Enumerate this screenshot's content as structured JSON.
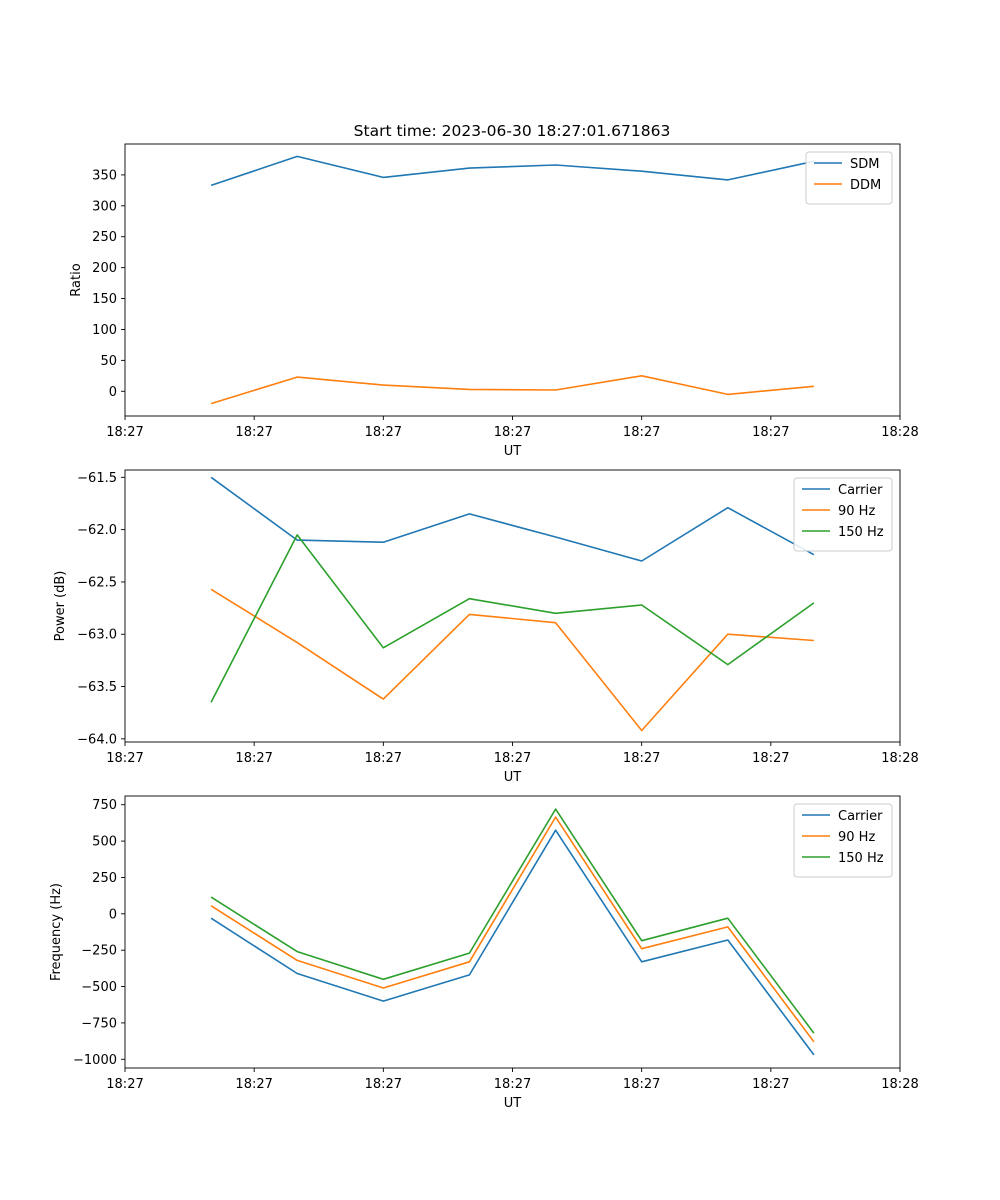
{
  "figure": {
    "title": "Start time: 2023-06-30 18:27:01.671863"
  },
  "chart_data": [
    {
      "type": "line",
      "ylabel": "Ratio",
      "xlabel": "UT",
      "xlim": [
        0,
        9
      ],
      "ylim": [
        -40,
        400
      ],
      "x": [
        1,
        2,
        3,
        4,
        5,
        6,
        7,
        8
      ],
      "x_tick_positions": [
        0.0,
        1.5,
        3.0,
        4.5,
        6.0,
        7.5,
        9.0
      ],
      "x_tick_labels": [
        "18:27",
        "18:27",
        "18:27",
        "18:27",
        "18:27",
        "18:27",
        "18:28"
      ],
      "y_ticks": [
        0,
        50,
        100,
        150,
        200,
        250,
        300,
        350
      ],
      "y_tick_labels": [
        "0",
        "50",
        "100",
        "150",
        "200",
        "250",
        "300",
        "350"
      ],
      "legend_position": "top-right",
      "series": [
        {
          "name": "SDM",
          "color": "#1f77b4",
          "values": [
            333,
            380,
            346,
            361,
            366,
            356,
            342,
            372
          ]
        },
        {
          "name": "DDM",
          "color": "#ff7f0e",
          "values": [
            -20,
            23,
            10,
            3,
            2,
            25,
            -5,
            8
          ]
        }
      ]
    },
    {
      "type": "line",
      "ylabel": "Power (dB)",
      "xlabel": "UT",
      "xlim": [
        0,
        9
      ],
      "ylim": [
        -64.03,
        -61.43
      ],
      "x": [
        1,
        2,
        3,
        4,
        5,
        6,
        7,
        8
      ],
      "x_tick_positions": [
        0.0,
        1.5,
        3.0,
        4.5,
        6.0,
        7.5,
        9.0
      ],
      "x_tick_labels": [
        "18:27",
        "18:27",
        "18:27",
        "18:27",
        "18:27",
        "18:27",
        "18:28"
      ],
      "y_ticks": [
        -64.0,
        -63.5,
        -63.0,
        -62.5,
        -62.0,
        -61.5
      ],
      "y_tick_labels": [
        "−64.0",
        "−63.5",
        "−63.0",
        "−62.5",
        "−62.0",
        "−61.5"
      ],
      "legend_position": "top-right",
      "series": [
        {
          "name": "Carrier",
          "color": "#1f77b4",
          "values": [
            -61.5,
            -62.1,
            -62.12,
            -61.85,
            -62.07,
            -62.3,
            -61.79,
            -62.24
          ]
        },
        {
          "name": "90 Hz",
          "color": "#ff7f0e",
          "values": [
            -62.57,
            -63.08,
            -63.62,
            -62.81,
            -62.89,
            -63.92,
            -63.0,
            -63.06
          ]
        },
        {
          "name": "150 Hz",
          "color": "#2ca02c",
          "values": [
            -63.65,
            -62.05,
            -63.13,
            -62.66,
            -62.8,
            -62.72,
            -63.29,
            -62.7
          ]
        }
      ]
    },
    {
      "type": "line",
      "ylabel": "Frequency (Hz)",
      "xlabel": "UT",
      "xlim": [
        0,
        9
      ],
      "ylim": [
        -1060,
        810
      ],
      "x": [
        1,
        2,
        3,
        4,
        5,
        6,
        7,
        8
      ],
      "x_tick_positions": [
        0.0,
        1.5,
        3.0,
        4.5,
        6.0,
        7.5,
        9.0
      ],
      "x_tick_labels": [
        "18:27",
        "18:27",
        "18:27",
        "18:27",
        "18:27",
        "18:27",
        "18:28"
      ],
      "y_ticks": [
        -1000,
        -750,
        -500,
        -250,
        0,
        250,
        500,
        750
      ],
      "y_tick_labels": [
        "−1000",
        "−750",
        "−500",
        "−250",
        "0",
        "250",
        "500",
        "750"
      ],
      "legend_position": "top-right",
      "series": [
        {
          "name": "Carrier",
          "color": "#1f77b4",
          "values": [
            -30,
            -410,
            -600,
            -420,
            575,
            -330,
            -180,
            -970
          ]
        },
        {
          "name": "90 Hz",
          "color": "#ff7f0e",
          "values": [
            55,
            -320,
            -510,
            -330,
            665,
            -240,
            -90,
            -880
          ]
        },
        {
          "name": "150 Hz",
          "color": "#2ca02c",
          "values": [
            115,
            -260,
            -450,
            -270,
            720,
            -185,
            -30,
            -820
          ]
        }
      ]
    }
  ]
}
